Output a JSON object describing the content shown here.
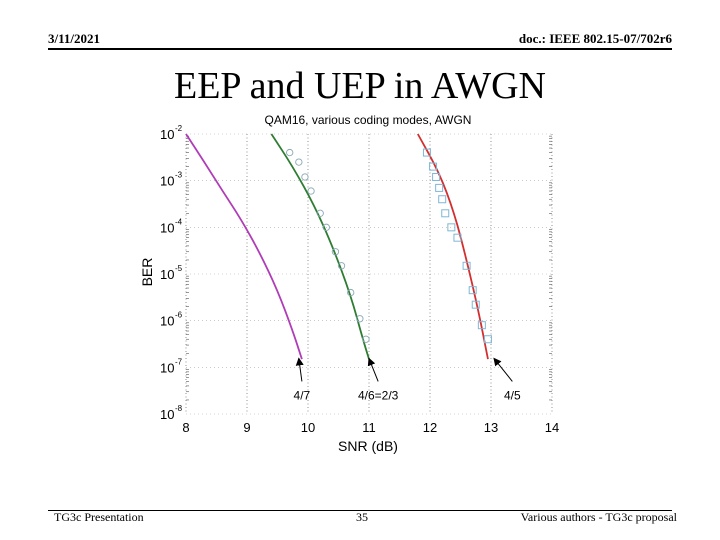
{
  "header": {
    "date": "3/11/2021",
    "doc": "doc.: IEEE 802.15-07/702r6"
  },
  "slide": {
    "title": "EEP and UEP in AWGN"
  },
  "footer": {
    "left": "TG3c Presentation",
    "page": "35",
    "right": "Various authors - TG3c proposal"
  },
  "chart_data": {
    "type": "line",
    "title": "QAM16, various coding modes, AWGN",
    "xlabel": "SNR (dB)",
    "ylabel": "BER",
    "xlim": [
      8,
      14
    ],
    "ylim_log10": [
      -8,
      -2
    ],
    "yscale": "log",
    "xticks": [
      "8",
      "9",
      "10",
      "11",
      "12",
      "13",
      "14"
    ],
    "yticks": [
      {
        "base": "10",
        "exp": "-2"
      },
      {
        "base": "10",
        "exp": "-3"
      },
      {
        "base": "10",
        "exp": "-4"
      },
      {
        "base": "10",
        "exp": "-5"
      },
      {
        "base": "10",
        "exp": "-6"
      },
      {
        "base": "10",
        "exp": "-7"
      },
      {
        "base": "10",
        "exp": "-8"
      }
    ],
    "grid": true,
    "series": [
      {
        "color": "#b03cb8",
        "points": [
          [
            8.0,
            0.01
          ],
          [
            8.3,
            0.0025
          ],
          [
            8.6,
            0.0006
          ],
          [
            8.9,
            0.00015
          ],
          [
            9.2,
            3e-05
          ],
          [
            9.5,
            4.5e-06
          ],
          [
            9.75,
            6e-07
          ],
          [
            9.9,
            1.5e-07
          ]
        ],
        "markers": []
      },
      {
        "color": "#2e7d32",
        "points": [
          [
            9.4,
            0.01
          ],
          [
            9.75,
            0.002
          ],
          [
            10.1,
            0.0003
          ],
          [
            10.4,
            4e-05
          ],
          [
            10.7,
            3.5e-06
          ],
          [
            10.9,
            4e-07
          ],
          [
            11.0,
            1.5e-07
          ]
        ],
        "markers": [
          [
            9.7,
            0.004
          ],
          [
            9.85,
            0.0025
          ],
          [
            9.95,
            0.0012
          ],
          [
            10.05,
            0.0006
          ],
          [
            10.2,
            0.0002
          ],
          [
            10.3,
            0.0001
          ],
          [
            10.45,
            3e-05
          ],
          [
            10.55,
            1.5e-05
          ],
          [
            10.7,
            4e-06
          ],
          [
            10.85,
            1.1e-06
          ],
          [
            10.95,
            4e-07
          ]
        ]
      },
      {
        "color": "#d32f2f",
        "points": [
          [
            11.8,
            0.01
          ],
          [
            12.15,
            0.0015
          ],
          [
            12.4,
            0.0002
          ],
          [
            12.6,
            2e-05
          ],
          [
            12.8,
            1.5e-06
          ],
          [
            12.95,
            1.5e-07
          ]
        ],
        "markers": [
          [
            11.95,
            0.004
          ],
          [
            12.05,
            0.002
          ],
          [
            12.1,
            0.0012
          ],
          [
            12.15,
            0.0007
          ],
          [
            12.2,
            0.0004
          ],
          [
            12.25,
            0.0002
          ],
          [
            12.35,
            0.0001
          ],
          [
            12.45,
            6e-05
          ],
          [
            12.6,
            1.5e-05
          ],
          [
            12.7,
            4.5e-06
          ],
          [
            12.75,
            2.2e-06
          ],
          [
            12.85,
            8e-07
          ],
          [
            12.95,
            4e-07
          ]
        ]
      }
    ],
    "annotations": [
      {
        "text": "4/7",
        "point": [
          9.8,
          1.8e-07
        ],
        "label_at": [
          9.9,
          2.5e-08
        ]
      },
      {
        "text": "4/6=2/3",
        "point": [
          10.95,
          1.8e-07
        ],
        "label_at": [
          11.15,
          2.5e-08
        ]
      },
      {
        "text": "4/5",
        "point": [
          13.0,
          1.8e-07
        ],
        "label_at": [
          13.35,
          2.5e-08
        ]
      }
    ]
  }
}
